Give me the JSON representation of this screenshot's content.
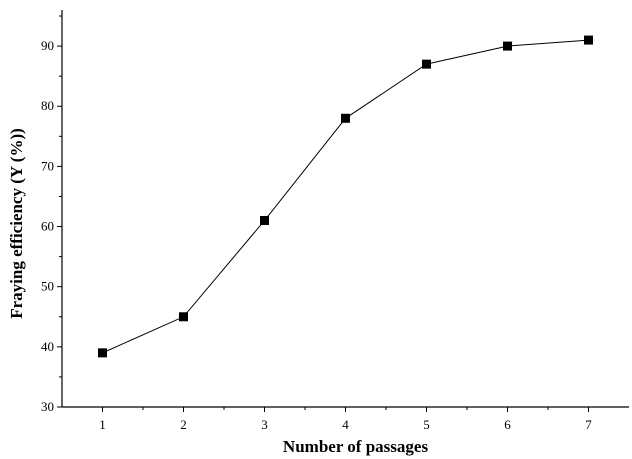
{
  "chart_data": {
    "type": "line",
    "xlabel": "Number of passages",
    "ylabel": "Fraying efficiency (Y (%))",
    "x": [
      1,
      2,
      3,
      4,
      5,
      6,
      7
    ],
    "series": [
      {
        "values": [
          39,
          45,
          61,
          78,
          87,
          90,
          91
        ]
      }
    ],
    "xlim": [
      0.5,
      7.5
    ],
    "ylim": [
      30,
      96
    ],
    "xticks": [
      "1",
      "2",
      "3",
      "4",
      "5",
      "6",
      "7"
    ],
    "yticks": [
      "30",
      "40",
      "50",
      "60",
      "70",
      "80",
      "90"
    ],
    "marker": "square",
    "grid": false,
    "colors": {
      "line": "#000000",
      "marker": "#000000"
    }
  }
}
